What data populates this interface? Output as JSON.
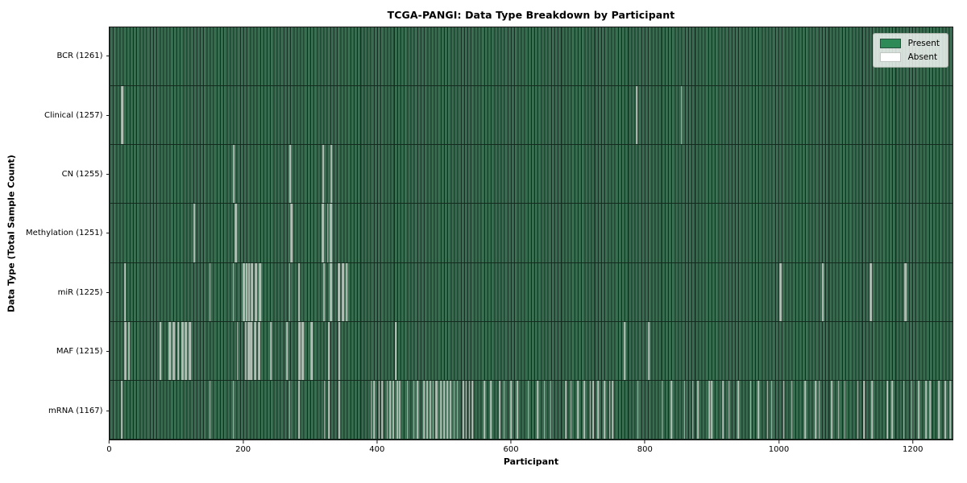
{
  "figure": {
    "title": "TCGA-PANGI: Data Type Breakdown by Participant",
    "xlabel": "Participant",
    "ylabel": "Data Type (Total Sample Count)"
  },
  "legend": {
    "entries": [
      {
        "label": "Present",
        "color": "#2e8b57",
        "border": "#24513b"
      },
      {
        "label": "Absent",
        "color": "#ffffff",
        "border": "#c0c6c0"
      }
    ],
    "position": "upper-right"
  },
  "chart_data": {
    "type": "heatmap",
    "title": "TCGA-PANGI: Data Type Breakdown by Participant",
    "xlabel": "Participant",
    "ylabel": "Data Type (Total Sample Count)",
    "x_ticks": [
      0,
      200,
      400,
      600,
      800,
      1000,
      1200
    ],
    "x_range": [
      0,
      1261
    ],
    "n_participants": 1261,
    "present_color": "#2e8b57",
    "absent_color": "#ffffff",
    "grid": false,
    "legend_position": "upper-right",
    "rows": [
      {
        "label": "BCR (1261)",
        "data_type": "BCR",
        "total_samples": 1261,
        "absent_count": 0,
        "absent_participants": []
      },
      {
        "label": "Clinical (1257)",
        "data_type": "Clinical",
        "total_samples": 1257,
        "absent_count": 4,
        "absent_participants": [
          18,
          19,
          788,
          855
        ]
      },
      {
        "label": "CN (1255)",
        "data_type": "CN",
        "total_samples": 1255,
        "absent_count": 6,
        "absent_participants": [
          185,
          186,
          269,
          270,
          319,
          331
        ]
      },
      {
        "label": "Methylation (1251)",
        "data_type": "Methylation",
        "total_samples": 1251,
        "absent_count": 10,
        "absent_participants": [
          126,
          188,
          189,
          271,
          272,
          318,
          319,
          326,
          330,
          331
        ]
      },
      {
        "label": "miR (1225)",
        "data_type": "miR",
        "total_samples": 1225,
        "absent_count": 36,
        "absent_participants": [
          23,
          150,
          185,
          200,
          201,
          204,
          205,
          208,
          209,
          212,
          213,
          218,
          219,
          224,
          225,
          269,
          283,
          320,
          321,
          330,
          331,
          342,
          343,
          348,
          349,
          354,
          355,
          1003,
          1004,
          1066,
          1067,
          1138,
          1139,
          1189,
          1190,
          1191
        ]
      },
      {
        "label": "MAF (1215)",
        "data_type": "MAF",
        "total_samples": 1215,
        "absent_count": 46,
        "absent_participants": [
          23,
          24,
          29,
          75,
          76,
          89,
          90,
          95,
          96,
          102,
          103,
          108,
          109,
          110,
          113,
          114,
          119,
          120,
          191,
          203,
          204,
          207,
          208,
          211,
          212,
          217,
          218,
          223,
          224,
          241,
          265,
          283,
          284,
          288,
          289,
          301,
          302,
          303,
          327,
          328,
          343,
          427,
          428,
          770,
          806,
          807
        ]
      },
      {
        "label": "mRNA (1167)",
        "data_type": "mRNA",
        "total_samples": 1167,
        "absent_count": 94,
        "absent_participants": [
          18,
          150,
          185,
          269,
          283,
          321,
          328,
          343,
          391,
          395,
          403,
          407,
          415,
          419,
          420,
          424,
          430,
          434,
          445,
          455,
          460,
          470,
          475,
          479,
          480,
          484,
          488,
          490,
          495,
          500,
          505,
          510,
          515,
          520,
          529,
          533,
          538,
          542,
          560,
          570,
          583,
          590,
          600,
          610,
          626,
          640,
          650,
          660,
          682,
          690,
          700,
          710,
          719,
          723,
          730,
          740,
          748,
          752,
          790,
          826,
          840,
          860,
          872,
          880,
          897,
          900,
          917,
          926,
          940,
          959,
          970,
          984,
          990,
          1008,
          1020,
          1040,
          1056,
          1061,
          1080,
          1090,
          1100,
          1119,
          1128,
          1140,
          1163,
          1170,
          1188,
          1200,
          1210,
          1221,
          1227,
          1240,
          1250,
          1257
        ]
      }
    ]
  }
}
